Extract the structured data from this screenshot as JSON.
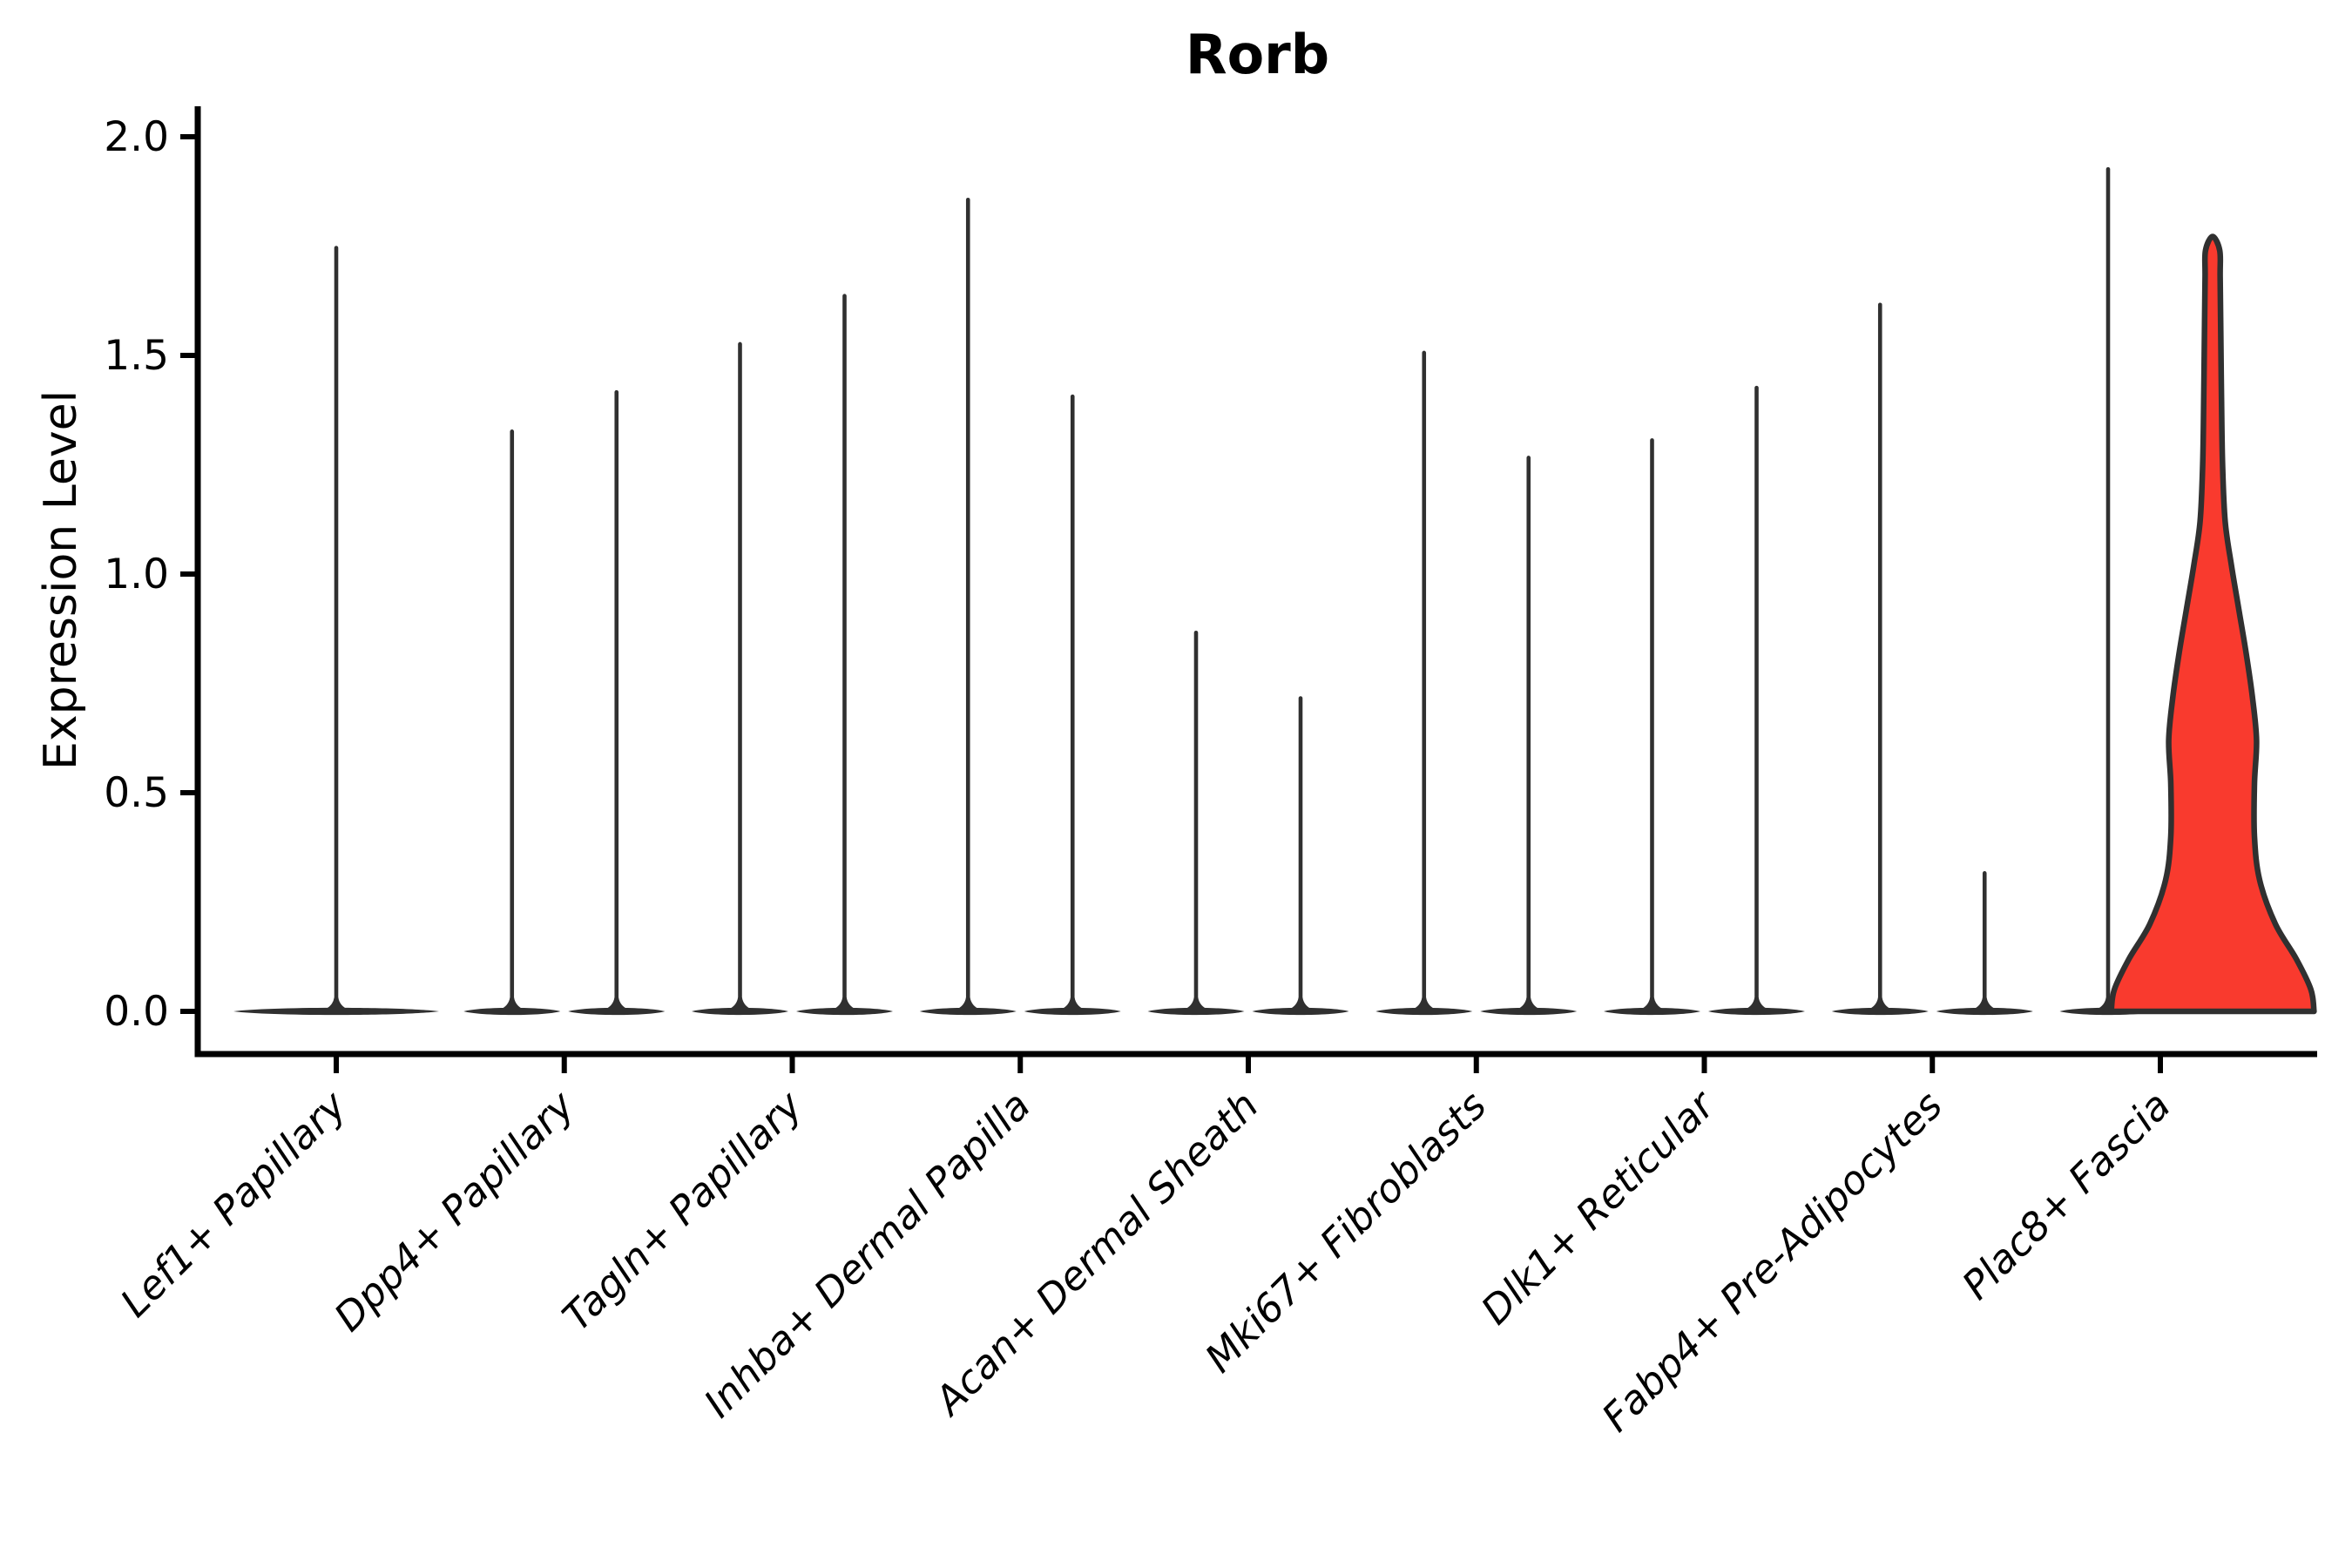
{
  "figure": {
    "title": "Rorb",
    "y_axis_label": "Expression Level"
  },
  "colors": {
    "background": "#ffffff",
    "axis": "#000000",
    "violin_outline": "#303030",
    "highlight_fill": "#f93a2e"
  },
  "chart_data": {
    "type": "violin",
    "title": "Rorb",
    "xlabel": "",
    "ylabel": "Expression Level",
    "ylim": [
      0,
      2.05
    ],
    "yticks": [
      0.0,
      0.5,
      1.0,
      1.5,
      2.0
    ],
    "ytick_labels": [
      "0.0",
      "0.5",
      "1.0",
      "1.5",
      "2.0"
    ],
    "grid": false,
    "legend": null,
    "categories": [
      "Lef1+ Papillary",
      "Dpp4+ Papillary",
      "Tagln+ Papillary",
      "Inhba+ Dermal Papilla",
      "Acan+ Dermal Sheath",
      "Mki67+ Fibroblasts",
      "Dlk1+ Reticular",
      "Fabp4+ Pre-Adipocytes",
      "Plac8+ Fascia"
    ],
    "groups": [
      {
        "category": "Lef1+ Papillary",
        "violins": [
          {
            "pos": "center",
            "max_expression": 1.75,
            "filled": false
          }
        ]
      },
      {
        "category": "Dpp4+ Papillary",
        "violins": [
          {
            "pos": "left",
            "max_expression": 1.33,
            "filled": false
          },
          {
            "pos": "right",
            "max_expression": 1.42,
            "filled": false
          }
        ]
      },
      {
        "category": "Tagln+ Papillary",
        "violins": [
          {
            "pos": "left",
            "max_expression": 1.53,
            "filled": false
          },
          {
            "pos": "right",
            "max_expression": 1.64,
            "filled": false
          }
        ]
      },
      {
        "category": "Inhba+ Dermal Papilla",
        "violins": [
          {
            "pos": "left",
            "max_expression": 1.86,
            "filled": false
          },
          {
            "pos": "right",
            "max_expression": 1.41,
            "filled": false
          }
        ]
      },
      {
        "category": "Acan+ Dermal Sheath",
        "violins": [
          {
            "pos": "left",
            "max_expression": 0.87,
            "filled": false
          },
          {
            "pos": "right",
            "max_expression": 0.72,
            "filled": false
          }
        ]
      },
      {
        "category": "Mki67+ Fibroblasts",
        "violins": [
          {
            "pos": "left",
            "max_expression": 1.51,
            "filled": false
          },
          {
            "pos": "right",
            "max_expression": 1.27,
            "filled": false
          }
        ]
      },
      {
        "category": "Dlk1+ Reticular",
        "violins": [
          {
            "pos": "left",
            "max_expression": 1.31,
            "filled": false
          },
          {
            "pos": "right",
            "max_expression": 1.43,
            "filled": false
          }
        ]
      },
      {
        "category": "Fabp4+ Pre-Adipocytes",
        "violins": [
          {
            "pos": "left",
            "max_expression": 1.62,
            "filled": false
          },
          {
            "pos": "right",
            "max_expression": 0.32,
            "filled": false
          }
        ]
      },
      {
        "category": "Plac8+ Fascia",
        "violins": [
          {
            "pos": "left",
            "max_expression": 1.93,
            "filled": false
          },
          {
            "pos": "right",
            "max_expression": 1.76,
            "filled": true,
            "fill": "#f93a2e",
            "density_profile": [
              [
                0.0,
                0.97
              ],
              [
                0.05,
                0.94
              ],
              [
                0.12,
                0.8
              ],
              [
                0.2,
                0.6
              ],
              [
                0.3,
                0.45
              ],
              [
                0.4,
                0.4
              ],
              [
                0.52,
                0.4
              ],
              [
                0.62,
                0.42
              ],
              [
                0.72,
                0.38
              ],
              [
                0.82,
                0.32
              ],
              [
                0.92,
                0.25
              ],
              [
                1.02,
                0.18
              ],
              [
                1.12,
                0.12
              ],
              [
                1.25,
                0.095
              ],
              [
                1.4,
                0.085
              ],
              [
                1.55,
                0.078
              ],
              [
                1.68,
                0.072
              ],
              [
                1.74,
                0.068
              ]
            ]
          }
        ]
      }
    ]
  }
}
